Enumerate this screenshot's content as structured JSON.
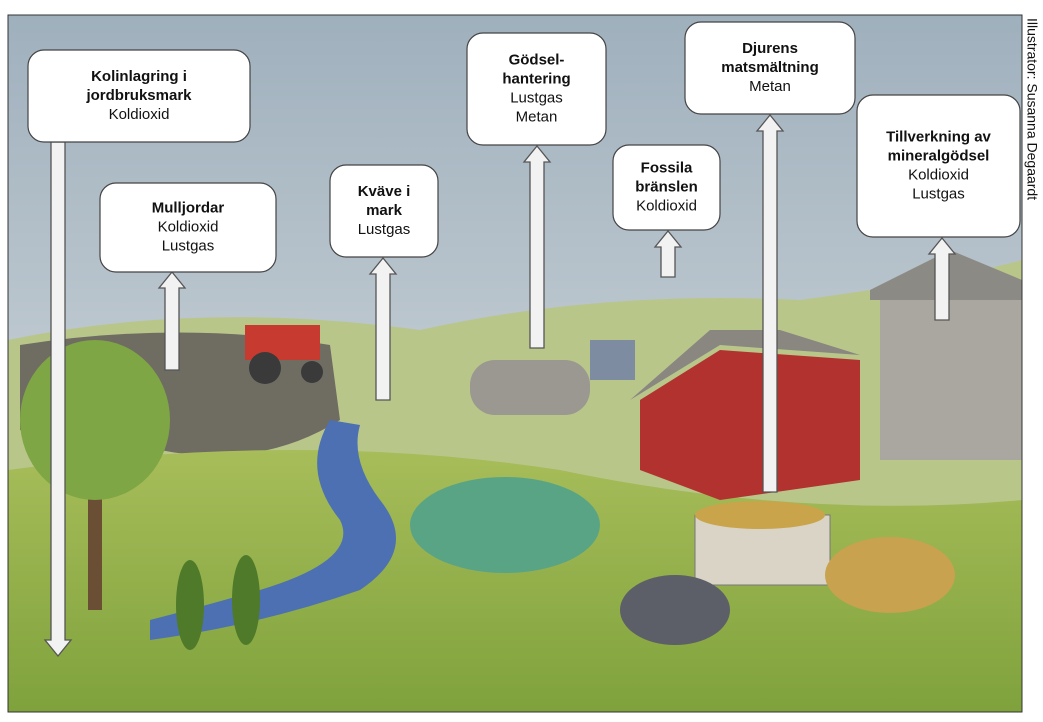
{
  "boxes": [
    {
      "title_lines": [
        "Kolinlagring i",
        "jordbruksmark"
      ],
      "gases": [
        "Koldioxid"
      ]
    },
    {
      "title_lines": [
        "Mulljordar"
      ],
      "gases": [
        "Koldioxid",
        "Lustgas"
      ]
    },
    {
      "title_lines": [
        "Kväve i",
        "mark"
      ],
      "gases": [
        "Lustgas"
      ]
    },
    {
      "title_lines": [
        "Gödsel-",
        "hantering"
      ],
      "gases": [
        "Lustgas",
        "Metan"
      ]
    },
    {
      "title_lines": [
        "Fossila",
        "bränslen"
      ],
      "gases": [
        "Koldioxid"
      ]
    },
    {
      "title_lines": [
        "Djurens",
        "matsmältning"
      ],
      "gases": [
        "Metan"
      ]
    },
    {
      "title_lines": [
        "Tillverkning av",
        "mineralgödsel"
      ],
      "gases": [
        "Koldioxid",
        "Lustgas"
      ]
    }
  ],
  "credit": "Illustrator: Susanna Degaardt"
}
